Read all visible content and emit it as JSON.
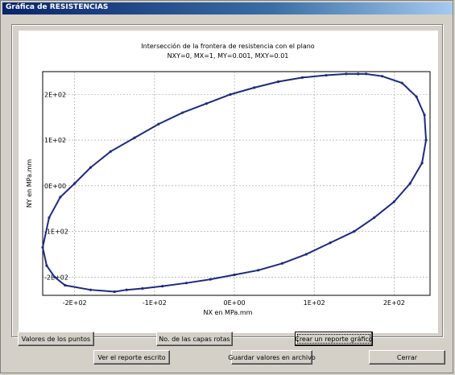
{
  "window": {
    "title": "Gráfica de RESISTENCIAS"
  },
  "buttons": {
    "valores_puntos": "Valores de los puntos",
    "capas_rotas": "No. de las capas rotas",
    "crear_reporte": "Crear un reporte gráfico",
    "ver_reporte": "Ver el reporte escrito",
    "guardar_valores": "Guardar valores en archivo",
    "cerrar": "Cerrar"
  },
  "chart_data": {
    "type": "line",
    "title": "Intersección de la frontera de resistencia con el plano",
    "subtitle": "NXY=0, MX=1, MY=0.001, MXY=0.01",
    "xlabel": "NX en MPa.mm",
    "ylabel": "NY en MPa.mm",
    "xlim": [
      -240,
      245
    ],
    "ylim": [
      -240,
      250
    ],
    "grid": true,
    "x_ticks": [
      {
        "value": -200,
        "label": "-2E+02"
      },
      {
        "value": -100,
        "label": "-1E+02"
      },
      {
        "value": 0,
        "label": "0E+00"
      },
      {
        "value": 100,
        "label": "1E+02"
      },
      {
        "value": 200,
        "label": "2E+02"
      }
    ],
    "y_ticks": [
      {
        "value": 200,
        "label": "2E+02"
      },
      {
        "value": 100,
        "label": "1E+02"
      },
      {
        "value": 0,
        "label": "0E+00"
      },
      {
        "value": -100,
        "label": "-1E+02"
      },
      {
        "value": -200,
        "label": "-2E+02"
      }
    ],
    "series": [
      {
        "color": "#1f2a7a",
        "x": [
          155,
          165,
          185,
          210,
          228,
          238,
          240,
          235,
          220,
          200,
          175,
          150,
          120,
          90,
          60,
          30,
          0,
          -30,
          -60,
          -90,
          -115,
          -135,
          -150,
          -180,
          -212,
          -225,
          -235,
          -240,
          -232,
          -218,
          -200,
          -180,
          -155,
          -125,
          -95,
          -65,
          -35,
          -5,
          25,
          55,
          85,
          115,
          140,
          155
        ],
        "y": [
          245,
          245,
          240,
          225,
          195,
          155,
          100,
          50,
          5,
          -35,
          -70,
          -100,
          -125,
          -150,
          -170,
          -185,
          -195,
          -205,
          -213,
          -220,
          -225,
          -228,
          -232,
          -228,
          -218,
          -200,
          -175,
          -135,
          -70,
          -25,
          5,
          40,
          75,
          105,
          135,
          160,
          180,
          200,
          215,
          228,
          237,
          242,
          245,
          245
        ]
      }
    ]
  }
}
